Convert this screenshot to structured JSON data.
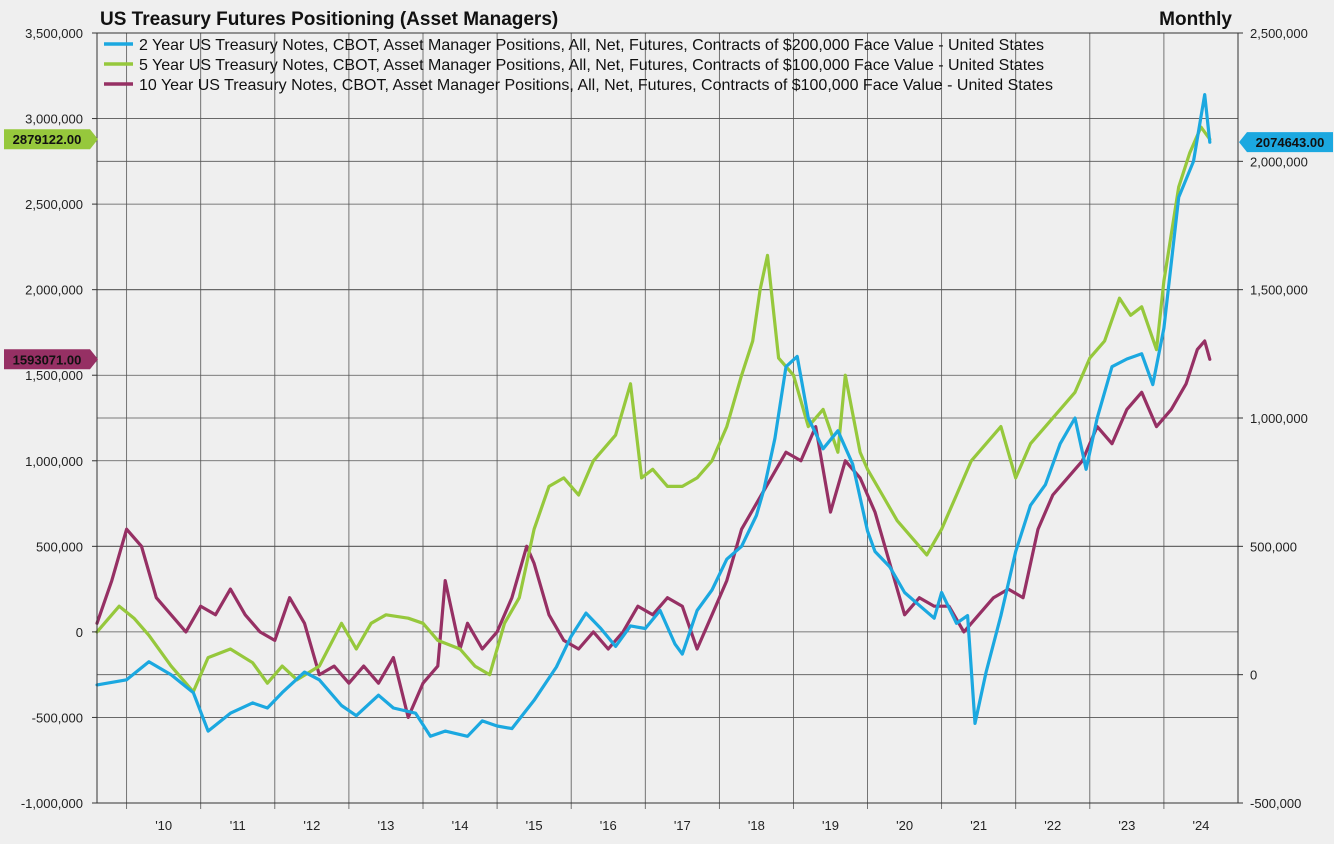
{
  "chart_data": {
    "type": "line",
    "title": "US Treasury Futures Positioning (Asset Managers)",
    "frequency": "Monthly",
    "x_range": [
      2009.6,
      2025.0
    ],
    "x_tick_labels": [
      "'10",
      "'11",
      "'12",
      "'13",
      "'14",
      "'15",
      "'16",
      "'17",
      "'18",
      "'19",
      "'20",
      "'21",
      "'22",
      "'23",
      "'24"
    ],
    "x_tick_years": [
      2010,
      2011,
      2012,
      2013,
      2014,
      2015,
      2016,
      2017,
      2018,
      2019,
      2020,
      2021,
      2022,
      2023,
      2024
    ],
    "left_axis": {
      "ylim": [
        -1000000,
        3500000
      ],
      "ticks": [
        -1000000,
        -500000,
        0,
        500000,
        1000000,
        1500000,
        2000000,
        2500000,
        3000000,
        3500000
      ],
      "tick_labels": [
        "-1,000,000",
        "-500,000",
        "0",
        "500,000",
        "1,000,000",
        "1,500,000",
        "2,000,000",
        "2,500,000",
        "3,000,000",
        "3,500,000"
      ]
    },
    "right_axis": {
      "ylim": [
        -500000,
        2500000
      ],
      "ticks": [
        -500000,
        0,
        500000,
        1000000,
        1500000,
        2000000,
        2500000
      ],
      "tick_labels": [
        "-500,000",
        "0",
        "500,000",
        "1,000,000",
        "1,500,000",
        "2,000,000",
        "2,500,000"
      ]
    },
    "grid": true,
    "legend_position": "top-left",
    "series": [
      {
        "name": "2 Year US Treasury Notes, CBOT, Asset Manager Positions, All, Net, Futures, Contracts of $200,000 Face Value - United States",
        "axis": "right",
        "color": "#1ba8e0",
        "last_value_label": "2074643.00",
        "x": [
          2009.6,
          2010.0,
          2010.3,
          2010.6,
          2010.9,
          2011.1,
          2011.4,
          2011.7,
          2011.9,
          2012.1,
          2012.4,
          2012.6,
          2012.9,
          2013.1,
          2013.4,
          2013.6,
          2013.9,
          2014.1,
          2014.3,
          2014.6,
          2014.8,
          2015.0,
          2015.2,
          2015.5,
          2015.8,
          2016.0,
          2016.2,
          2016.4,
          2016.6,
          2016.8,
          2017.0,
          2017.2,
          2017.4,
          2017.5,
          2017.7,
          2017.9,
          2018.1,
          2018.3,
          2018.5,
          2018.6,
          2018.75,
          2018.9,
          2019.05,
          2019.2,
          2019.4,
          2019.6,
          2019.8,
          2020.0,
          2020.1,
          2020.3,
          2020.5,
          2020.7,
          2020.9,
          2021.0,
          2021.2,
          2021.35,
          2021.45,
          2021.6,
          2021.8,
          2022.0,
          2022.2,
          2022.4,
          2022.6,
          2022.8,
          2022.95,
          2023.1,
          2023.3,
          2023.5,
          2023.7,
          2023.85,
          2024.0,
          2024.2,
          2024.4,
          2024.55,
          2024.62
        ],
        "y": [
          -40000,
          -20000,
          50000,
          0,
          -70000,
          -220000,
          -150000,
          -110000,
          -130000,
          -70000,
          10000,
          -20000,
          -120000,
          -160000,
          -80000,
          -130000,
          -150000,
          -240000,
          -220000,
          -240000,
          -180000,
          -200000,
          -210000,
          -100000,
          30000,
          150000,
          240000,
          180000,
          110000,
          190000,
          180000,
          250000,
          120000,
          80000,
          250000,
          330000,
          450000,
          500000,
          620000,
          720000,
          920000,
          1200000,
          1240000,
          1000000,
          880000,
          950000,
          820000,
          560000,
          480000,
          420000,
          320000,
          270000,
          220000,
          320000,
          200000,
          230000,
          -190000,
          10000,
          230000,
          480000,
          660000,
          740000,
          900000,
          1000000,
          800000,
          1000000,
          1200000,
          1230000,
          1250000,
          1130000,
          1350000,
          1860000,
          2000000,
          2260000,
          2074643
        ]
      },
      {
        "name": "5 Year US Treasury Notes, CBOT, Asset Manager Positions, All, Net, Futures, Contracts of $100,000 Face Value - United States",
        "axis": "left",
        "color": "#96c83c",
        "last_value_label": "2879122.00",
        "x": [
          2009.6,
          2009.9,
          2010.1,
          2010.3,
          2010.6,
          2010.9,
          2011.1,
          2011.4,
          2011.7,
          2011.9,
          2012.1,
          2012.3,
          2012.6,
          2012.9,
          2013.1,
          2013.3,
          2013.5,
          2013.8,
          2014.0,
          2014.2,
          2014.5,
          2014.7,
          2014.9,
          2015.1,
          2015.3,
          2015.5,
          2015.7,
          2015.9,
          2016.1,
          2016.3,
          2016.6,
          2016.8,
          2016.95,
          2017.1,
          2017.3,
          2017.5,
          2017.7,
          2017.9,
          2018.1,
          2018.3,
          2018.45,
          2018.55,
          2018.65,
          2018.8,
          2019.0,
          2019.2,
          2019.4,
          2019.6,
          2019.7,
          2019.9,
          2020.0,
          2020.2,
          2020.4,
          2020.6,
          2020.8,
          2021.0,
          2021.2,
          2021.4,
          2021.6,
          2021.8,
          2022.0,
          2022.2,
          2022.4,
          2022.6,
          2022.8,
          2023.0,
          2023.2,
          2023.4,
          2023.55,
          2023.7,
          2023.9,
          2024.0,
          2024.2,
          2024.35,
          2024.5,
          2024.62
        ],
        "y": [
          0,
          150000,
          80000,
          -20000,
          -200000,
          -350000,
          -150000,
          -100000,
          -180000,
          -300000,
          -200000,
          -280000,
          -200000,
          50000,
          -100000,
          50000,
          100000,
          80000,
          50000,
          -50000,
          -100000,
          -200000,
          -250000,
          50000,
          200000,
          600000,
          850000,
          900000,
          800000,
          1000000,
          1150000,
          1450000,
          900000,
          950000,
          850000,
          850000,
          900000,
          1000000,
          1200000,
          1500000,
          1700000,
          2000000,
          2200000,
          1600000,
          1500000,
          1200000,
          1300000,
          1050000,
          1500000,
          1050000,
          950000,
          800000,
          650000,
          550000,
          450000,
          600000,
          800000,
          1000000,
          1100000,
          1200000,
          900000,
          1100000,
          1200000,
          1300000,
          1400000,
          1600000,
          1700000,
          1950000,
          1850000,
          1900000,
          1650000,
          2050000,
          2600000,
          2800000,
          2950000,
          2879122
        ]
      },
      {
        "name": "10 Year US Treasury Notes, CBOT, Asset Manager Positions, All, Net, Futures, Contracts of $100,000 Face Value - United States",
        "axis": "left",
        "color": "#963064",
        "last_value_label": "1593071.00",
        "x": [
          2009.6,
          2009.8,
          2010.0,
          2010.2,
          2010.4,
          2010.6,
          2010.8,
          2011.0,
          2011.2,
          2011.4,
          2011.6,
          2011.8,
          2012.0,
          2012.2,
          2012.4,
          2012.6,
          2012.8,
          2013.0,
          2013.2,
          2013.4,
          2013.6,
          2013.8,
          2014.0,
          2014.2,
          2014.3,
          2014.5,
          2014.6,
          2014.8,
          2015.0,
          2015.2,
          2015.4,
          2015.5,
          2015.7,
          2015.9,
          2016.1,
          2016.3,
          2016.5,
          2016.7,
          2016.9,
          2017.1,
          2017.3,
          2017.5,
          2017.7,
          2017.9,
          2018.1,
          2018.3,
          2018.5,
          2018.7,
          2018.9,
          2019.1,
          2019.3,
          2019.5,
          2019.7,
          2019.9,
          2020.1,
          2020.3,
          2020.5,
          2020.7,
          2020.9,
          2021.1,
          2021.3,
          2021.5,
          2021.7,
          2021.9,
          2022.1,
          2022.3,
          2022.5,
          2022.7,
          2022.9,
          2023.1,
          2023.3,
          2023.5,
          2023.7,
          2023.9,
          2024.1,
          2024.3,
          2024.45,
          2024.55,
          2024.62
        ],
        "y": [
          50000,
          300000,
          600000,
          500000,
          200000,
          100000,
          0,
          150000,
          100000,
          250000,
          100000,
          0,
          -50000,
          200000,
          50000,
          -250000,
          -200000,
          -300000,
          -200000,
          -300000,
          -150000,
          -500000,
          -300000,
          -200000,
          300000,
          -100000,
          50000,
          -100000,
          0,
          200000,
          500000,
          400000,
          100000,
          -50000,
          -100000,
          0,
          -100000,
          0,
          150000,
          100000,
          200000,
          150000,
          -100000,
          100000,
          300000,
          600000,
          750000,
          900000,
          1050000,
          1000000,
          1200000,
          700000,
          1000000,
          900000,
          700000,
          400000,
          100000,
          200000,
          150000,
          150000,
          0,
          100000,
          200000,
          250000,
          200000,
          600000,
          800000,
          900000,
          1000000,
          1200000,
          1100000,
          1300000,
          1400000,
          1200000,
          1300000,
          1450000,
          1650000,
          1700000,
          1593071
        ]
      }
    ]
  }
}
